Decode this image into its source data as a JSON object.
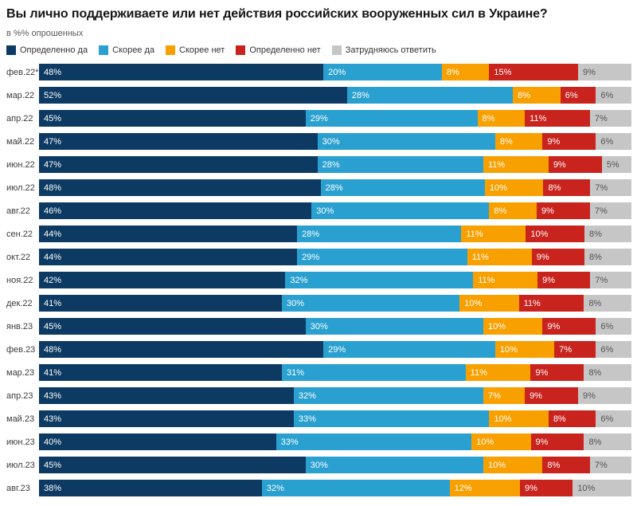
{
  "title": "Вы лично поддерживаете или нет действия российских вооруженных сил в Украине?",
  "subtitle": "в %% опрошенных",
  "colors": {
    "definitely_yes": "#0d3a63",
    "rather_yes": "#29a0d0",
    "rather_no": "#f8a000",
    "definitely_no": "#c9231e",
    "hard_to_say": "#c6c6c6",
    "label_on_dark": "#ffffff",
    "label_on_light": "#545454"
  },
  "legend": [
    {
      "label": "Определенно да",
      "color": "#0d3a63"
    },
    {
      "label": "Скорее да",
      "color": "#29a0d0"
    },
    {
      "label": "Скорее нет",
      "color": "#f8a000"
    },
    {
      "label": "Определенно нет",
      "color": "#c9231e"
    },
    {
      "label": "Затрудняюсь ответить",
      "color": "#c6c6c6"
    }
  ],
  "chart_data": {
    "type": "bar",
    "stacked": true,
    "orientation": "horizontal",
    "title": "Вы лично поддерживаете или нет действия российских вооруженных сил в Украине?",
    "subtitle": "в %% опрошенных",
    "value_suffix": "%",
    "xlim": [
      0,
      100
    ],
    "legend_position": "top",
    "grid": false,
    "categories": [
      "фев.22*",
      "мар.22",
      "апр.22",
      "май.22",
      "июн.22",
      "июл.22",
      "авг.22",
      "сен.22",
      "окт.22",
      "ноя.22",
      "дек.22",
      "янв.23",
      "фев.23",
      "мар.23",
      "апр.23",
      "май.23",
      "июн.23",
      "июл.23",
      "авг.23"
    ],
    "series": [
      {
        "name": "Определенно да",
        "color": "#0d3a63",
        "values": [
          48,
          52,
          45,
          47,
          47,
          48,
          46,
          44,
          44,
          42,
          41,
          45,
          48,
          41,
          43,
          43,
          40,
          45,
          38
        ]
      },
      {
        "name": "Скорее да",
        "color": "#29a0d0",
        "values": [
          20,
          28,
          29,
          30,
          28,
          28,
          30,
          28,
          29,
          32,
          30,
          30,
          29,
          31,
          32,
          33,
          33,
          30,
          32
        ]
      },
      {
        "name": "Скорее нет",
        "color": "#f8a000",
        "values": [
          8,
          8,
          8,
          8,
          11,
          10,
          8,
          11,
          11,
          11,
          10,
          10,
          10,
          11,
          7,
          10,
          10,
          10,
          12
        ]
      },
      {
        "name": "Определенно нет",
        "color": "#c9231e",
        "values": [
          15,
          6,
          11,
          9,
          9,
          8,
          9,
          10,
          9,
          9,
          11,
          9,
          7,
          9,
          9,
          8,
          9,
          8,
          9
        ]
      },
      {
        "name": "Затрудняюсь ответить",
        "color": "#c6c6c6",
        "values": [
          9,
          6,
          7,
          6,
          5,
          7,
          7,
          8,
          8,
          7,
          8,
          6,
          6,
          8,
          9,
          6,
          8,
          7,
          10
        ]
      }
    ]
  }
}
